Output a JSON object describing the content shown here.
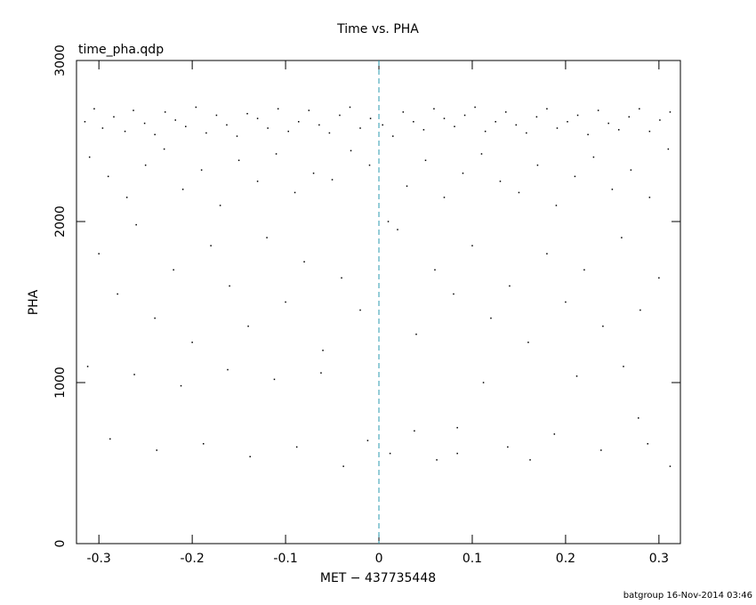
{
  "chart_data": {
    "type": "scatter",
    "title": "Time vs. PHA",
    "subtitle": "time_pha.qdp",
    "x_label": "MET − 437735448",
    "y_label": "PHA",
    "footer": "batgroup 16-Nov-2014 03:46",
    "xlim": [
      -0.324,
      0.323
    ],
    "ylim": [
      0,
      3000
    ],
    "xticks": [
      -0.3,
      -0.2,
      -0.1,
      0,
      0.1,
      0.2,
      0.3
    ],
    "yticks": [
      0,
      1000,
      2000,
      3000
    ],
    "color": "#000000",
    "vline": {
      "x": 0,
      "color": "#2a9bb0"
    },
    "x": [
      -0.315,
      -0.305,
      -0.296,
      -0.284,
      -0.272,
      -0.263,
      -0.251,
      -0.24,
      -0.229,
      -0.218,
      -0.207,
      -0.196,
      -0.185,
      -0.174,
      -0.163,
      -0.152,
      -0.141,
      -0.13,
      -0.119,
      -0.108,
      -0.097,
      -0.086,
      -0.075,
      -0.064,
      -0.053,
      -0.042,
      -0.031,
      -0.02,
      -0.009,
      0.004,
      0.015,
      0.026,
      0.037,
      0.048,
      0.059,
      0.07,
      0.081,
      0.092,
      0.103,
      0.114,
      0.125,
      0.136,
      0.147,
      0.158,
      0.169,
      0.18,
      0.191,
      0.202,
      0.213,
      0.224,
      0.235,
      0.246,
      0.257,
      0.268,
      0.279,
      0.29,
      0.301,
      0.312,
      -0.31,
      -0.29,
      -0.27,
      -0.25,
      -0.23,
      -0.21,
      -0.19,
      -0.17,
      -0.15,
      -0.13,
      -0.11,
      -0.09,
      -0.07,
      -0.05,
      -0.03,
      -0.01,
      0.01,
      0.03,
      0.05,
      0.07,
      0.09,
      0.11,
      0.13,
      0.15,
      0.17,
      0.19,
      0.21,
      0.23,
      0.25,
      0.27,
      0.29,
      0.31,
      -0.3,
      -0.28,
      -0.26,
      -0.24,
      -0.22,
      -0.2,
      -0.18,
      -0.16,
      -0.14,
      -0.12,
      -0.1,
      -0.08,
      -0.06,
      -0.04,
      -0.02,
      0.02,
      0.04,
      0.06,
      0.08,
      0.1,
      0.12,
      0.14,
      0.16,
      0.18,
      0.2,
      0.22,
      0.24,
      0.26,
      0.28,
      0.3,
      -0.312,
      -0.288,
      -0.262,
      -0.238,
      -0.212,
      -0.188,
      -0.162,
      -0.138,
      -0.112,
      -0.088,
      -0.062,
      -0.038,
      -0.012,
      0.012,
      0.038,
      0.062,
      0.084,
      0.084,
      0.112,
      0.138,
      0.162,
      0.188,
      0.212,
      0.238,
      0.262,
      0.278,
      0.288,
      0.312
    ],
    "values": [
      2620,
      2700,
      2580,
      2650,
      2560,
      2690,
      2610,
      2540,
      2680,
      2630,
      2590,
      2710,
      2550,
      2660,
      2600,
      2530,
      2670,
      2640,
      2580,
      2700,
      2560,
      2620,
      2690,
      2600,
      2550,
      2660,
      2710,
      2580,
      2640,
      2600,
      2530,
      2680,
      2620,
      2570,
      2700,
      2640,
      2590,
      2660,
      2710,
      2560,
      2620,
      2680,
      2600,
      2550,
      2650,
      2700,
      2580,
      2620,
      2660,
      2540,
      2690,
      2610,
      2570,
      2650,
      2700,
      2560,
      2630,
      2680,
      2400,
      2280,
      2150,
      2350,
      2450,
      2200,
      2320,
      2100,
      2380,
      2250,
      2420,
      2180,
      2300,
      2260,
      2440,
      2350,
      2000,
      2220,
      2380,
      2150,
      2300,
      2420,
      2250,
      2180,
      2350,
      2100,
      2280,
      2400,
      2200,
      2320,
      2150,
      2450,
      1800,
      1550,
      1980,
      1400,
      1700,
      1250,
      1850,
      1600,
      1350,
      1900,
      1500,
      1750,
      1200,
      1650,
      1450,
      1950,
      1300,
      1700,
      1550,
      1850,
      1400,
      1600,
      1250,
      1800,
      1500,
      1700,
      1350,
      1900,
      1450,
      1650,
      1100,
      650,
      1050,
      580,
      980,
      620,
      1080,
      540,
      1020,
      600,
      1060,
      480,
      640,
      560,
      700,
      520,
      720,
      560,
      1000,
      600,
      520,
      680,
      1040,
      580,
      1100,
      780,
      620,
      480
    ]
  }
}
